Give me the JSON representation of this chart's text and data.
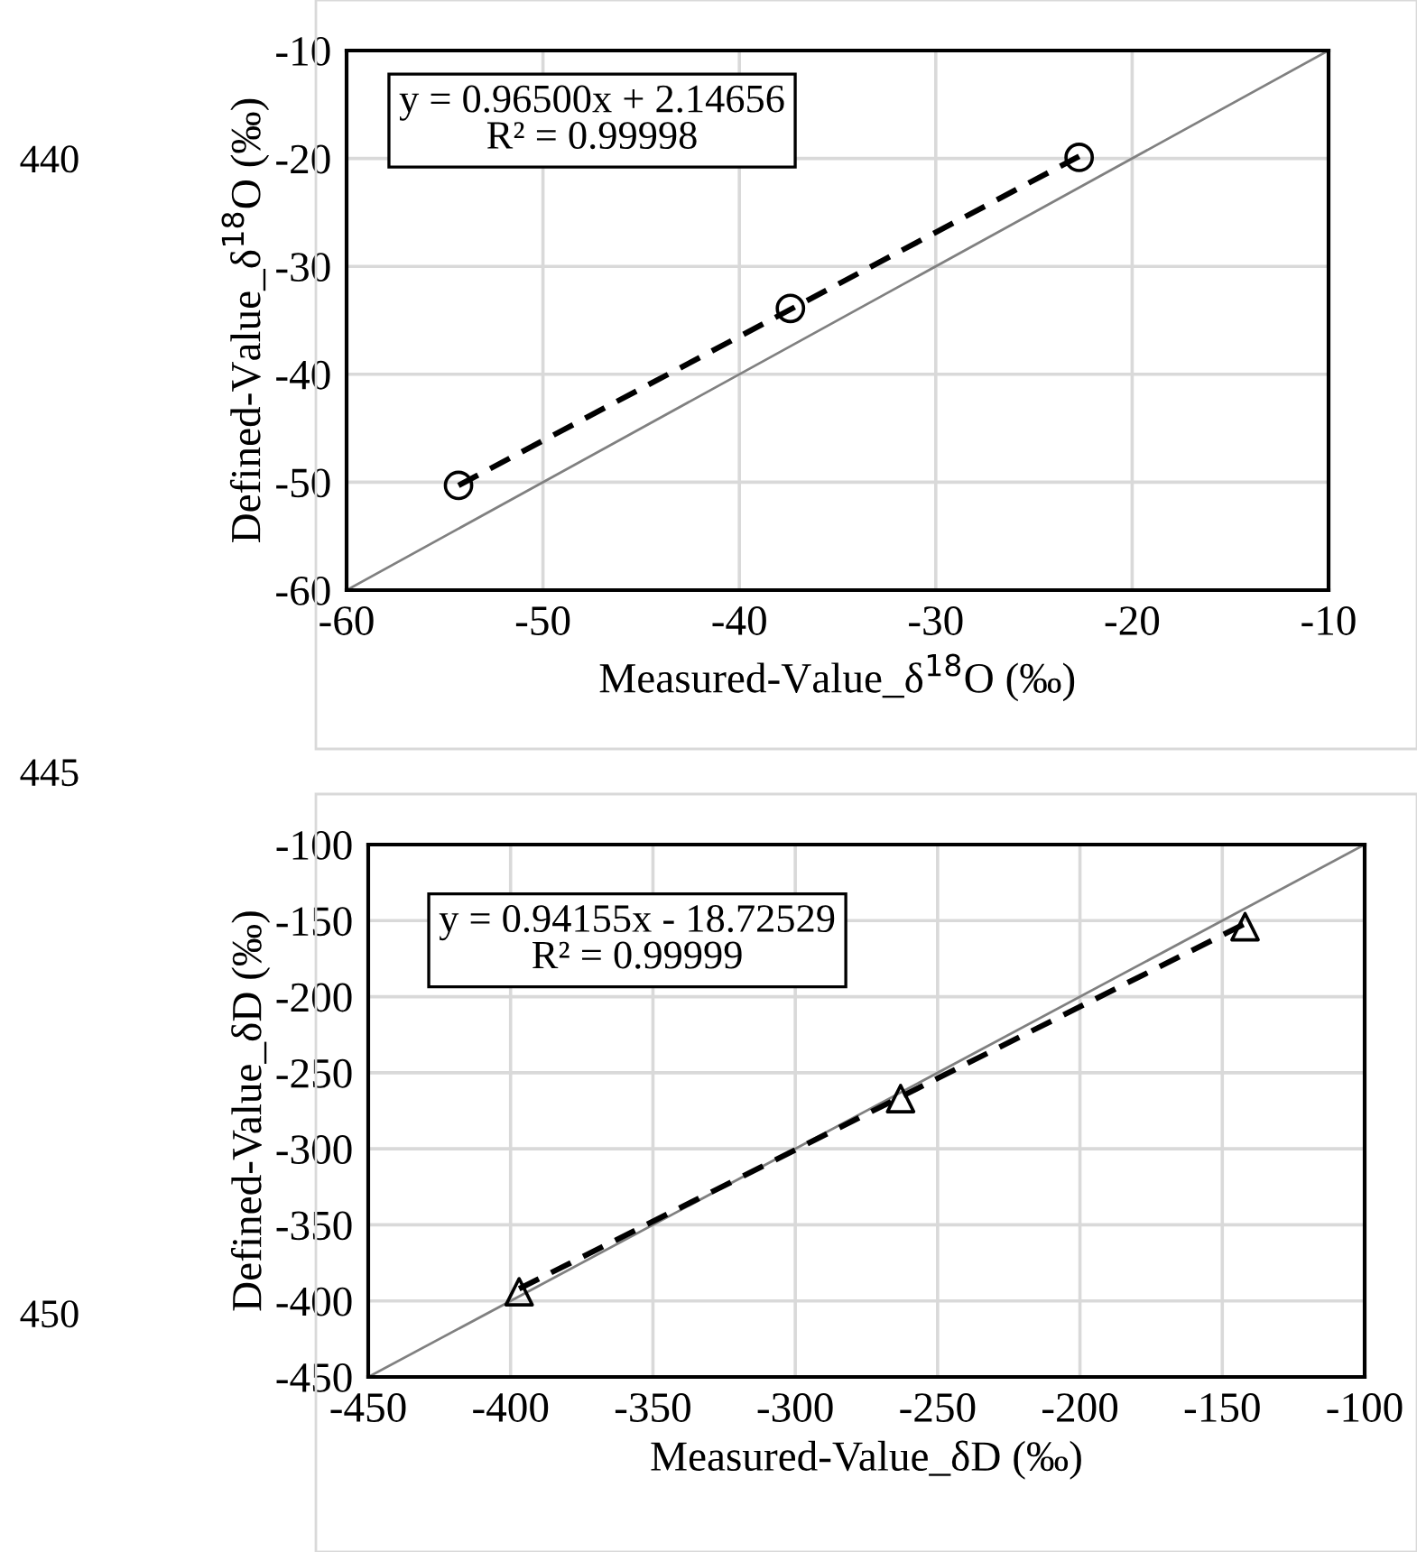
{
  "chart_data": [
    {
      "type": "scatter",
      "xlabel": "Measured-Value_δ$^{18}$O (‰)",
      "ylabel": "Defined-Value_δ$^{18}$O (‰)",
      "x": [
        -54.3,
        -37.4,
        -22.7
      ],
      "series": [
        {
          "color": "#000000",
          "marker": "circle",
          "values": [
            -50.3,
            -33.9,
            -19.9
          ]
        },
        {
          "type": "line",
          "color": "#000000",
          "line_style": "dashed",
          "marker": "none",
          "x": [
            -54.3,
            -22.7
          ],
          "values": [
            -50.3,
            -19.8
          ]
        },
        {
          "type": "line",
          "color": "#808080",
          "line_style": "solid",
          "marker": "none",
          "x": [
            -60,
            -10
          ],
          "values": [
            -60,
            -10
          ]
        }
      ],
      "xlim": [
        -60,
        -10
      ],
      "ylim": [
        -60,
        -10
      ],
      "xticks": [
        -60,
        -50,
        -40,
        -30,
        -20,
        -10
      ],
      "yticks": [
        -60,
        -50,
        -40,
        -30,
        -20,
        -10
      ],
      "grid": true,
      "legend": false,
      "annotations": [
        "y = 0.96500x + 2.14656\nR² = 0.99998",
        "440",
        "445"
      ]
    },
    {
      "type": "scatter",
      "xlabel": "Measured-Value_δD (‰)",
      "ylabel": "Defined-Value_δD (‰)",
      "x": [
        -397,
        -263,
        -142
      ],
      "series": [
        {
          "color": "#000000",
          "marker": "triangle",
          "values": [
            -394,
            -267,
            -154
          ]
        },
        {
          "type": "line",
          "color": "#000000",
          "line_style": "dashed",
          "marker": "none",
          "x": [
            -397,
            -142
          ],
          "values": [
            -392,
            -152
          ]
        },
        {
          "type": "line",
          "color": "#808080",
          "line_style": "solid",
          "marker": "none",
          "x": [
            -450,
            -100
          ],
          "values": [
            -450,
            -100
          ]
        }
      ],
      "xlim": [
        -450,
        -100
      ],
      "ylim": [
        -450,
        -100
      ],
      "xticks": [
        -450,
        -400,
        -350,
        -300,
        -250,
        -200,
        -150,
        -100
      ],
      "yticks": [
        -450,
        -400,
        -350,
        -300,
        -250,
        -200,
        -150,
        -100
      ],
      "grid": true,
      "legend": false,
      "annotations": [
        "y = 0.94155x - 18.72529\nR² = 0.99999",
        "450"
      ]
    }
  ]
}
